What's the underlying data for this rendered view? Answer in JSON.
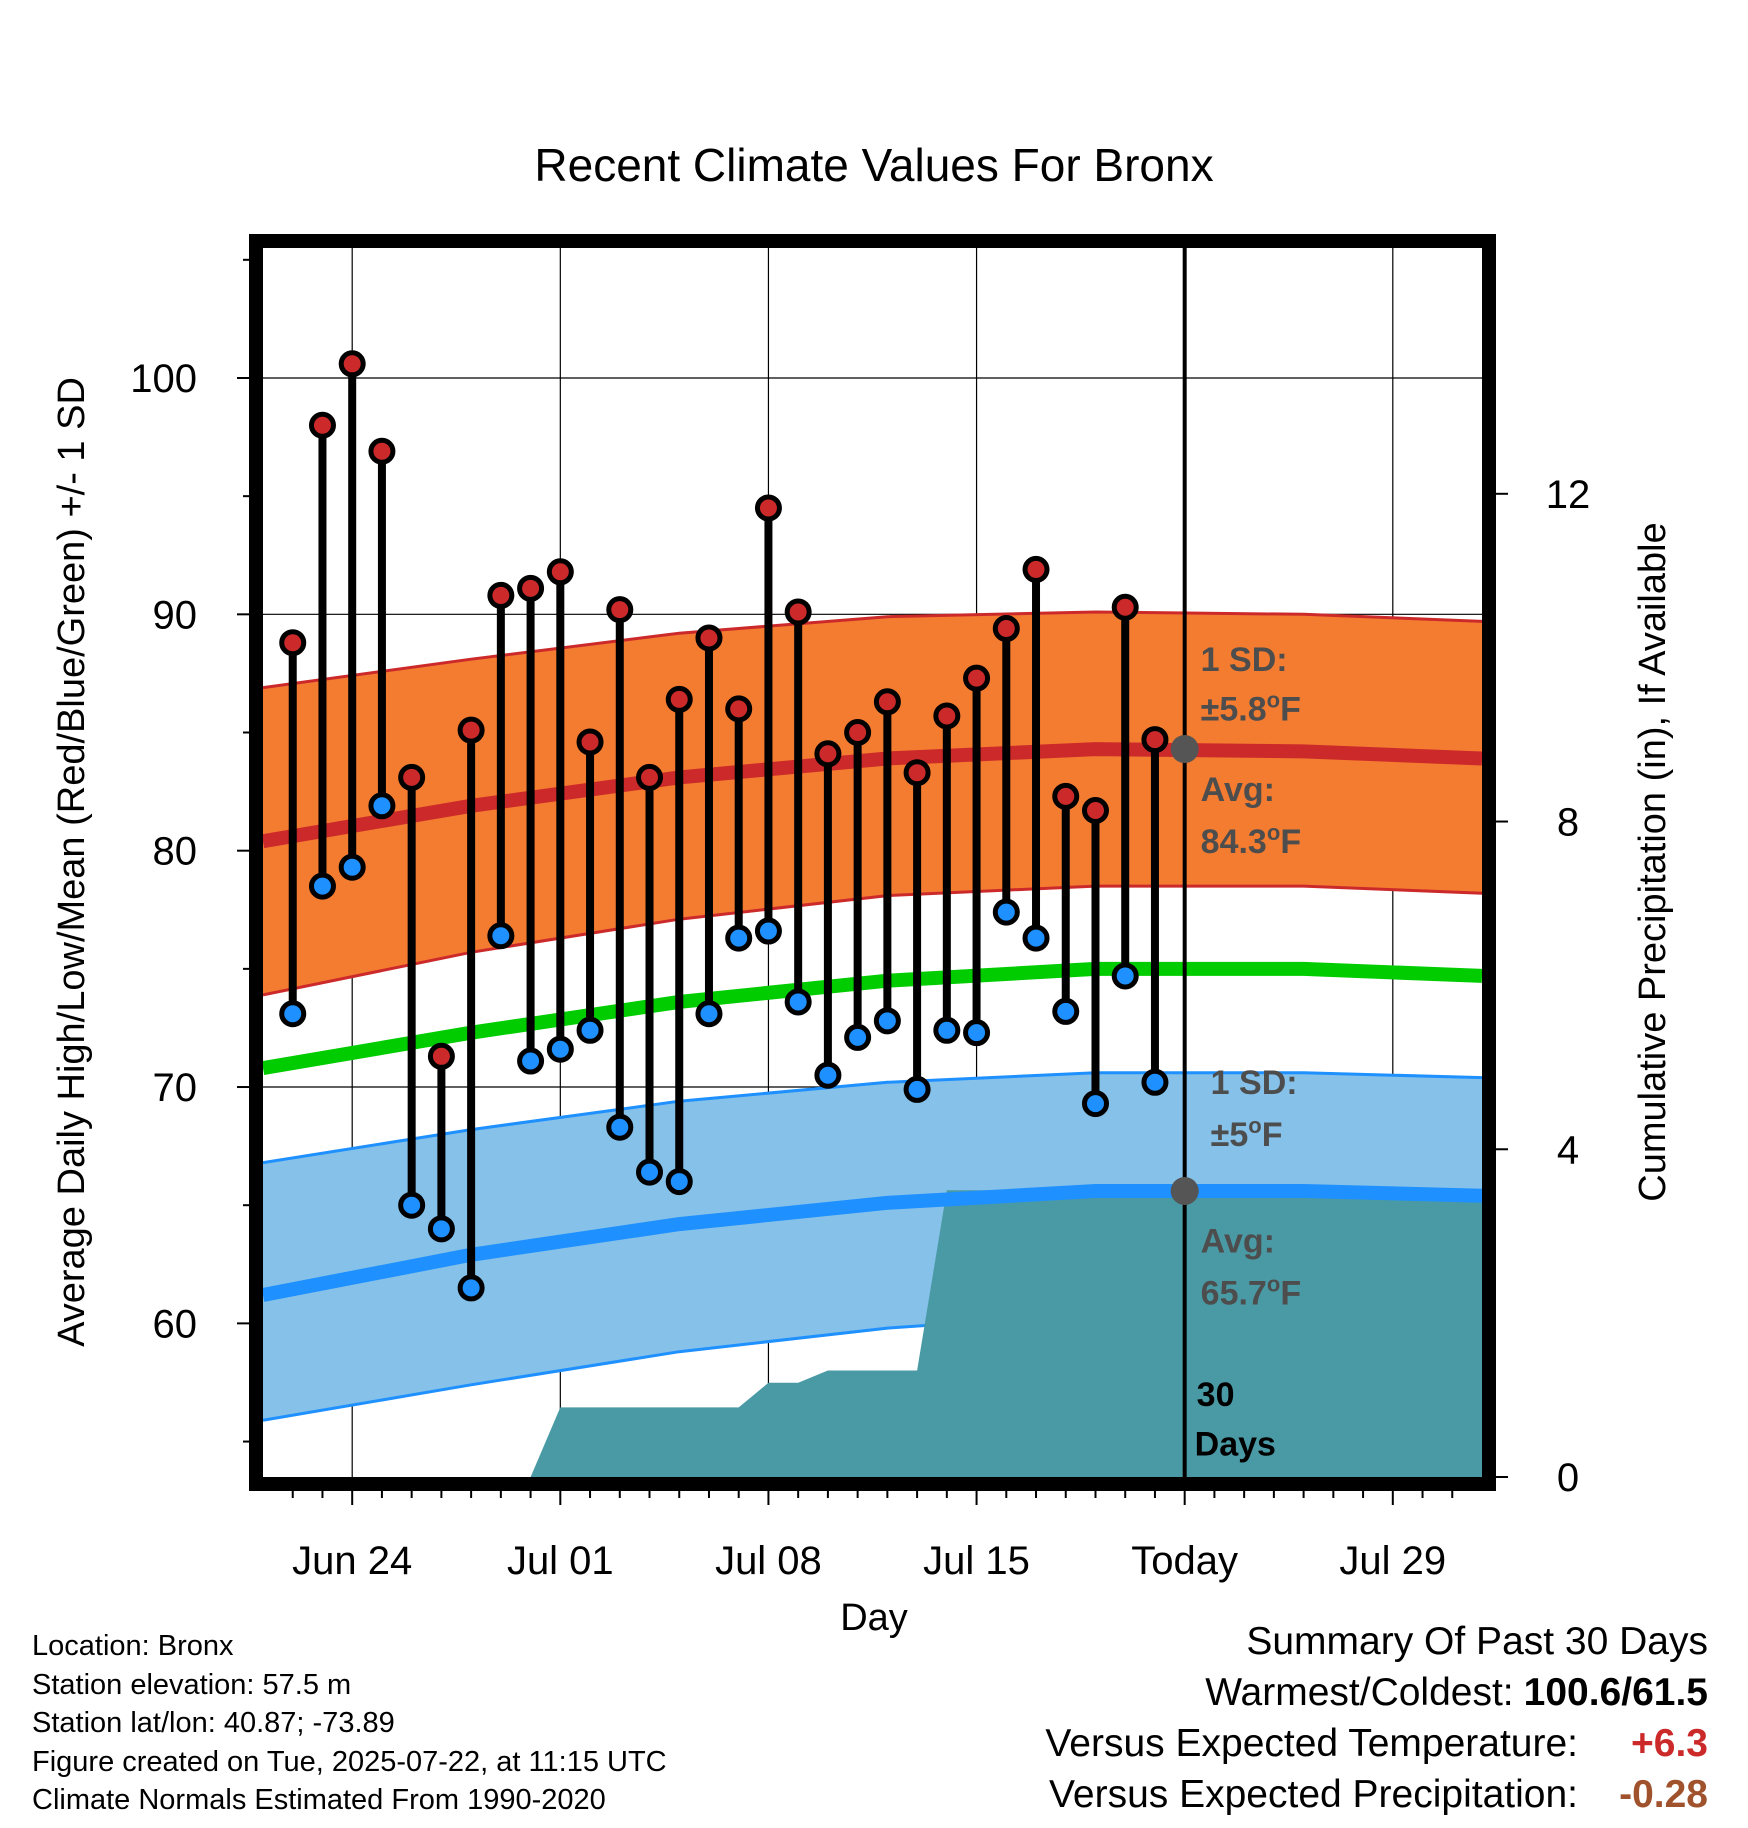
{
  "chart_data": {
    "type": "line",
    "title": "Recent Climate Values For Bronx",
    "xlabel": "Day",
    "ylabel": "Average Daily High/Low/Mean (Red/Blue/Green) +/- 1 SD",
    "ylabel_right": "Cumulative Precipitation (in), If Available",
    "x_tick_labels": [
      "Jun 24",
      "Jul 01",
      "Jul 08",
      "Jul 15",
      "Today",
      "Jul 29"
    ],
    "x_tick_dates": [
      "2025-06-24",
      "2025-07-01",
      "2025-07-08",
      "2025-07-15",
      "2025-07-22",
      "2025-07-29"
    ],
    "xlim": [
      "2025-06-21",
      "2025-08-01"
    ],
    "ylim": [
      53.5,
      105.5
    ],
    "y_ticks": [
      60,
      70,
      80,
      90,
      100
    ],
    "y2lim": [
      0,
      15
    ],
    "y2_ticks": [
      0,
      4,
      8,
      12
    ],
    "grid": true,
    "colors": {
      "high": "#cc2a2a",
      "low": "#1e90ff",
      "mean": "#00cc00",
      "high_band": "#f47c30",
      "low_band": "#85c1e9",
      "precip": "#4a9aa5",
      "annotation": "#4d4d4d"
    },
    "dates": [
      "2025-06-22",
      "2025-06-23",
      "2025-06-24",
      "2025-06-25",
      "2025-06-26",
      "2025-06-27",
      "2025-06-28",
      "2025-06-29",
      "2025-06-30",
      "2025-07-01",
      "2025-07-02",
      "2025-07-03",
      "2025-07-04",
      "2025-07-05",
      "2025-07-06",
      "2025-07-07",
      "2025-07-08",
      "2025-07-09",
      "2025-07-10",
      "2025-07-11",
      "2025-07-12",
      "2025-07-13",
      "2025-07-14",
      "2025-07-15",
      "2025-07-16",
      "2025-07-17",
      "2025-07-18",
      "2025-07-19",
      "2025-07-20",
      "2025-07-21"
    ],
    "daily_high": [
      88.8,
      98.0,
      100.6,
      96.9,
      83.1,
      71.3,
      85.1,
      90.8,
      91.1,
      91.8,
      84.6,
      90.2,
      83.1,
      86.4,
      89.0,
      86.0,
      94.5,
      90.1,
      84.1,
      85.0,
      86.3,
      83.3,
      85.7,
      87.3,
      89.4,
      91.9,
      82.3,
      81.7,
      90.3,
      84.7
    ],
    "daily_low": [
      73.1,
      78.5,
      79.3,
      81.9,
      65.0,
      64.0,
      61.5,
      76.4,
      71.1,
      71.6,
      72.4,
      68.3,
      66.4,
      66.0,
      73.1,
      76.3,
      76.6,
      73.6,
      70.5,
      72.1,
      72.8,
      69.9,
      72.4,
      72.3,
      77.4,
      76.3,
      73.2,
      69.3,
      74.7,
      70.2
    ],
    "normal_dates": [
      "2025-06-21",
      "2025-06-28",
      "2025-07-05",
      "2025-07-12",
      "2025-07-19",
      "2025-07-26",
      "2025-08-01"
    ],
    "normal_high": [
      80.4,
      81.9,
      83.1,
      83.9,
      84.3,
      84.2,
      83.9
    ],
    "normal_high_upper": [
      86.9,
      88.1,
      89.2,
      89.9,
      90.1,
      90.0,
      89.7
    ],
    "normal_high_lower": [
      73.9,
      75.7,
      77.1,
      78.1,
      78.5,
      78.5,
      78.2
    ],
    "normal_mean": [
      70.8,
      72.3,
      73.6,
      74.5,
      75.0,
      75.0,
      74.7
    ],
    "normal_low": [
      61.2,
      62.9,
      64.2,
      65.1,
      65.6,
      65.6,
      65.4
    ],
    "normal_low_upper": [
      66.8,
      68.2,
      69.4,
      70.2,
      70.6,
      70.6,
      70.4
    ],
    "normal_low_lower": [
      55.9,
      57.4,
      58.8,
      59.8,
      60.4,
      60.5,
      60.4
    ],
    "precip_cumulative": {
      "dates": [
        "2025-06-21",
        "2025-06-30",
        "2025-07-01",
        "2025-07-02",
        "2025-07-06",
        "2025-07-07",
        "2025-07-08",
        "2025-07-09",
        "2025-07-10",
        "2025-07-11",
        "2025-07-13",
        "2025-07-14",
        "2025-07-22",
        "2025-08-01"
      ],
      "values": [
        0,
        0,
        0.85,
        0.85,
        0.85,
        0.85,
        1.15,
        1.15,
        1.3,
        1.3,
        1.3,
        3.5,
        3.5,
        3.5
      ]
    },
    "annotations": {
      "high_sd_label": "1 SD:",
      "high_sd_value": "±5.8°F",
      "high_avg_label": "Avg:",
      "high_avg_value": "84.3°F",
      "low_sd_label": "1 SD:",
      "low_sd_value": "±5°F",
      "low_avg_label": "Avg:",
      "low_avg_value": "65.7°F",
      "days_number": "30",
      "days_word": "Days"
    }
  },
  "info": {
    "location": "Location: Bronx",
    "elevation": "Station elevation: 57.5 m",
    "latlon": "Station lat/lon: 40.87; -73.89",
    "created": "Figure created on Tue, 2025-07-22, at 11:15 UTC",
    "normals": "Climate Normals Estimated From 1990-2020"
  },
  "summary": {
    "title": "Summary Of Past 30 Days",
    "warmest_label": "Warmest/Coldest:",
    "warmest_value": "100.6/61.5",
    "temp_label": "Versus Expected Temperature:",
    "temp_value": "+6.3",
    "precip_label": "Versus Expected Precipitation:",
    "precip_value": "-0.28"
  }
}
